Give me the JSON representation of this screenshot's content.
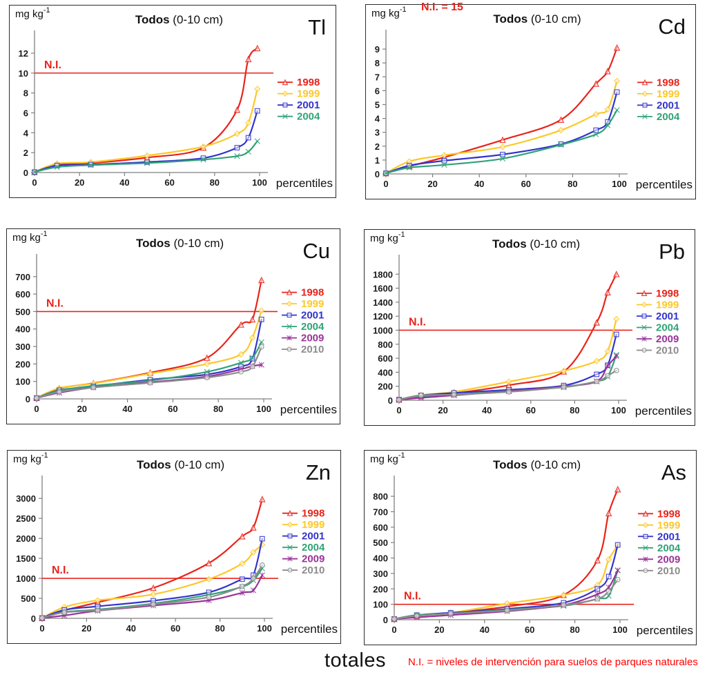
{
  "figure": {
    "caption_totales": "totales",
    "caption_ni_note": "N.I. = niveles de intervención para suelos de parques naturales",
    "ni_color": "#e8231a",
    "background": "#ffffff"
  },
  "chart_data": [
    {
      "type": "line",
      "element": "Tl",
      "title": {
        "bold": "Todos",
        "rest": " (0-10 cm)"
      },
      "unit": {
        "base": "mg kg",
        "sup": "-1"
      },
      "xlabel": "percentiles",
      "x": [
        0,
        10,
        25,
        50,
        75,
        90,
        95,
        99
      ],
      "xticks": [
        0,
        20,
        40,
        60,
        80,
        100
      ],
      "xlim": [
        0,
        100
      ],
      "ylim": [
        0,
        13.6
      ],
      "yticks": [
        0,
        2,
        4,
        6,
        8,
        10,
        12
      ],
      "grid": false,
      "legend_position": "right",
      "ni": {
        "value": 10,
        "label": "N.I.",
        "line": true,
        "position": "inside",
        "color": "#e8231a"
      },
      "series": [
        {
          "name": "1998",
          "color": "#e8231a",
          "marker": "triangle",
          "values": [
            0.05,
            0.8,
            0.95,
            1.5,
            2.5,
            6.3,
            11.4,
            12.5
          ]
        },
        {
          "name": "1999",
          "color": "#fcc828",
          "marker": "diamond",
          "values": [
            0.05,
            0.9,
            1.05,
            1.7,
            2.6,
            3.9,
            5.0,
            8.4
          ]
        },
        {
          "name": "2001",
          "color": "#3333cc",
          "marker": "square",
          "values": [
            0.05,
            0.7,
            0.8,
            1.05,
            1.45,
            2.5,
            3.5,
            6.2
          ]
        },
        {
          "name": "2004",
          "color": "#2fa377",
          "marker": "x",
          "values": [
            0.05,
            0.55,
            0.75,
            0.95,
            1.3,
            1.65,
            2.1,
            3.15
          ]
        }
      ]
    },
    {
      "type": "line",
      "element": "Cd",
      "title": {
        "bold": "Todos",
        "rest": " (0-10 cm)"
      },
      "unit": {
        "base": "mg kg",
        "sup": "-1"
      },
      "xlabel": "percentiles",
      "x": [
        0,
        10,
        25,
        50,
        75,
        90,
        95,
        99
      ],
      "xticks": [
        0,
        20,
        40,
        60,
        80,
        100
      ],
      "xlim": [
        0,
        100
      ],
      "ylim": [
        0,
        9.9
      ],
      "yticks": [
        0,
        1,
        2,
        3,
        4,
        5,
        6,
        7,
        8,
        9
      ],
      "grid": false,
      "legend_position": "right",
      "ni": {
        "value": 15,
        "label": "N.I. = 15",
        "line": false,
        "position": "top",
        "color": "#e8231a"
      },
      "series": [
        {
          "name": "1998",
          "color": "#e8231a",
          "marker": "triangle",
          "values": [
            0.05,
            0.55,
            1.2,
            2.45,
            3.9,
            6.5,
            7.4,
            9.1
          ]
        },
        {
          "name": "1999",
          "color": "#fcc828",
          "marker": "diamond",
          "values": [
            0.05,
            0.9,
            1.35,
            1.95,
            3.15,
            4.3,
            4.65,
            6.7
          ]
        },
        {
          "name": "2001",
          "color": "#3333cc",
          "marker": "square",
          "values": [
            0.05,
            0.6,
            0.95,
            1.4,
            2.15,
            3.15,
            3.75,
            5.9
          ]
        },
        {
          "name": "2004",
          "color": "#2fa377",
          "marker": "x",
          "values": [
            0.05,
            0.45,
            0.65,
            1.1,
            2.1,
            2.85,
            3.5,
            4.6
          ]
        }
      ]
    },
    {
      "type": "line",
      "element": "Cu",
      "title": {
        "bold": "Todos",
        "rest": " (0-10 cm)"
      },
      "unit": {
        "base": "mg kg",
        "sup": "-1"
      },
      "xlabel": "percentiles",
      "x": [
        0,
        10,
        25,
        50,
        75,
        90,
        95,
        99
      ],
      "xticks": [
        0,
        20,
        40,
        60,
        80,
        100
      ],
      "xlim": [
        0,
        100
      ],
      "ylim": [
        0,
        790
      ],
      "yticks": [
        0,
        100,
        200,
        300,
        400,
        500,
        600,
        700
      ],
      "grid": false,
      "legend_position": "right",
      "ni": {
        "value": 500,
        "label": "N.I.",
        "line": true,
        "position": "inside",
        "color": "#e8231a"
      },
      "series": [
        {
          "name": "1998",
          "color": "#e8231a",
          "marker": "triangle",
          "values": [
            5,
            60,
            90,
            150,
            235,
            425,
            455,
            680
          ]
        },
        {
          "name": "1999",
          "color": "#fcc828",
          "marker": "diamond",
          "values": [
            5,
            62,
            88,
            145,
            200,
            255,
            350,
            505
          ]
        },
        {
          "name": "2001",
          "color": "#3333cc",
          "marker": "square",
          "values": [
            5,
            50,
            72,
            110,
            140,
            185,
            230,
            455
          ]
        },
        {
          "name": "2004",
          "color": "#2fa377",
          "marker": "x",
          "values": [
            5,
            48,
            75,
            105,
            155,
            207,
            235,
            325
          ]
        },
        {
          "name": "2009",
          "color": "#993399",
          "marker": "star",
          "values": [
            5,
            35,
            65,
            95,
            128,
            170,
            188,
            195
          ]
        },
        {
          "name": "2010",
          "color": "#8c8c8c",
          "marker": "circle",
          "values": [
            5,
            40,
            65,
            92,
            122,
            155,
            185,
            298
          ]
        }
      ]
    },
    {
      "type": "line",
      "element": "Pb",
      "title": {
        "bold": "Todos",
        "rest": " (0-10 cm)"
      },
      "unit": {
        "base": "mg kg",
        "sup": "-1"
      },
      "xlabel": "percentiles",
      "x": [
        0,
        10,
        25,
        50,
        75,
        90,
        95,
        99
      ],
      "xticks": [
        0,
        20,
        40,
        60,
        80,
        100
      ],
      "xlim": [
        0,
        100
      ],
      "ylim": [
        0,
        1980
      ],
      "yticks": [
        0,
        200,
        400,
        600,
        800,
        1000,
        1200,
        1400,
        1600,
        1800
      ],
      "grid": false,
      "legend_position": "right",
      "ni": {
        "value": 1000,
        "label": "N.I.",
        "line": true,
        "position": "inside",
        "color": "#e8231a"
      },
      "series": [
        {
          "name": "1998",
          "color": "#e8231a",
          "marker": "triangle",
          "values": [
            10,
            60,
            100,
            215,
            410,
            1110,
            1540,
            1800
          ]
        },
        {
          "name": "1999",
          "color": "#fcc828",
          "marker": "diamond",
          "values": [
            10,
            75,
            120,
            265,
            420,
            560,
            700,
            1160
          ]
        },
        {
          "name": "2001",
          "color": "#3333cc",
          "marker": "square",
          "values": [
            10,
            70,
            105,
            150,
            210,
            370,
            500,
            940
          ]
        },
        {
          "name": "2004",
          "color": "#2fa377",
          "marker": "x",
          "values": [
            5,
            55,
            80,
            135,
            185,
            270,
            340,
            650
          ]
        },
        {
          "name": "2009",
          "color": "#993399",
          "marker": "star",
          "values": [
            5,
            35,
            70,
            130,
            195,
            270,
            490,
            630
          ]
        },
        {
          "name": "2010",
          "color": "#8c8c8c",
          "marker": "circle",
          "values": [
            5,
            70,
            80,
            120,
            190,
            270,
            350,
            425
          ]
        }
      ]
    },
    {
      "type": "line",
      "element": "Zn",
      "title": {
        "bold": "Todos",
        "rest": " (0-10 cm)"
      },
      "unit": {
        "base": "mg kg",
        "sup": "-1"
      },
      "xlabel": "percentiles",
      "x": [
        0,
        10,
        25,
        50,
        75,
        90,
        95,
        99
      ],
      "xticks": [
        0,
        20,
        40,
        60,
        80,
        100
      ],
      "xlim": [
        0,
        100
      ],
      "ylim": [
        0,
        3400
      ],
      "yticks": [
        0,
        500,
        1000,
        1500,
        2000,
        2500,
        3000
      ],
      "grid": false,
      "legend_position": "right",
      "ni": {
        "value": 1000,
        "label": "N.I.",
        "line": true,
        "position": "inside",
        "color": "#e8231a"
      },
      "series": [
        {
          "name": "1998",
          "color": "#e8231a",
          "marker": "triangle",
          "values": [
            10,
            200,
            400,
            760,
            1380,
            2050,
            2270,
            2980
          ]
        },
        {
          "name": "1999",
          "color": "#fcc828",
          "marker": "diamond",
          "values": [
            10,
            280,
            450,
            600,
            980,
            1370,
            1650,
            1840
          ]
        },
        {
          "name": "2001",
          "color": "#3333cc",
          "marker": "square",
          "values": [
            10,
            210,
            300,
            440,
            650,
            980,
            1080,
            1990
          ]
        },
        {
          "name": "2004",
          "color": "#2fa377",
          "marker": "x",
          "values": [
            10,
            160,
            220,
            370,
            590,
            790,
            950,
            1250
          ]
        },
        {
          "name": "2009",
          "color": "#993399",
          "marker": "star",
          "values": [
            10,
            70,
            190,
            320,
            450,
            640,
            700,
            1080
          ]
        },
        {
          "name": "2010",
          "color": "#8c8c8c",
          "marker": "circle",
          "values": [
            10,
            150,
            200,
            350,
            530,
            800,
            1000,
            1330
          ]
        }
      ]
    },
    {
      "type": "line",
      "element": "As",
      "title": {
        "bold": "Todos",
        "rest": " (0-10 cm)"
      },
      "unit": {
        "base": "mg kg",
        "sup": "-1"
      },
      "xlabel": "percentiles",
      "x": [
        0,
        10,
        25,
        50,
        75,
        90,
        95,
        99
      ],
      "xticks": [
        0,
        20,
        40,
        60,
        80,
        100
      ],
      "xlim": [
        0,
        100
      ],
      "ylim": [
        0,
        890
      ],
      "yticks": [
        0,
        100,
        200,
        300,
        400,
        500,
        600,
        700,
        800
      ],
      "grid": false,
      "legend_position": "right",
      "ni": {
        "value": 100,
        "label": "N.I.",
        "line": true,
        "position": "inside",
        "color": "#e8231a"
      },
      "series": [
        {
          "name": "1998",
          "color": "#e8231a",
          "marker": "triangle",
          "values": [
            5,
            25,
            45,
            85,
            160,
            385,
            690,
            845
          ]
        },
        {
          "name": "1999",
          "color": "#fcc828",
          "marker": "diamond",
          "values": [
            5,
            30,
            45,
            105,
            160,
            225,
            390,
            480
          ]
        },
        {
          "name": "2001",
          "color": "#3333cc",
          "marker": "square",
          "values": [
            5,
            30,
            45,
            70,
            110,
            200,
            280,
            485
          ]
        },
        {
          "name": "2004",
          "color": "#2fa377",
          "marker": "x",
          "values": [
            5,
            30,
            40,
            65,
            90,
            135,
            155,
            320
          ]
        },
        {
          "name": "2009",
          "color": "#993399",
          "marker": "star",
          "values": [
            5,
            15,
            30,
            55,
            95,
            165,
            210,
            320
          ]
        },
        {
          "name": "2010",
          "color": "#8c8c8c",
          "marker": "circle",
          "values": [
            5,
            25,
            40,
            60,
            95,
            135,
            185,
            260
          ]
        }
      ]
    }
  ]
}
